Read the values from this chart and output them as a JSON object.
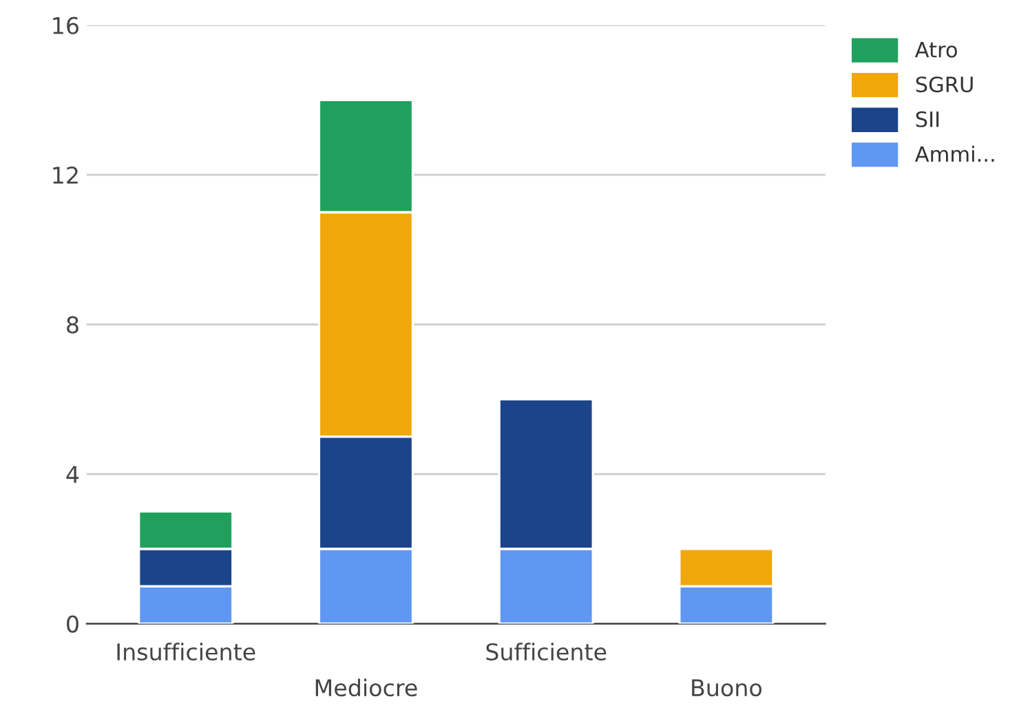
{
  "chart_data": {
    "type": "bar",
    "stacked": true,
    "categories": [
      "Insufficiente",
      "Mediocre",
      "Sufficiente",
      "Buono"
    ],
    "series": [
      {
        "name": "Ammi...",
        "color": "#5f97f2",
        "values": [
          1,
          2,
          2,
          1
        ]
      },
      {
        "name": "SII",
        "color": "#1c448b",
        "values": [
          1,
          3,
          4,
          0
        ]
      },
      {
        "name": "SGRU",
        "color": "#f0a70a",
        "values": [
          0,
          6,
          0,
          1
        ]
      },
      {
        "name": "Atro",
        "color": "#1fa15d",
        "values": [
          1,
          3,
          0,
          0
        ]
      }
    ],
    "ylim": [
      0,
      16
    ],
    "yticks": [
      0,
      4,
      8,
      12,
      16
    ],
    "grid": "y",
    "legend": "top right"
  }
}
